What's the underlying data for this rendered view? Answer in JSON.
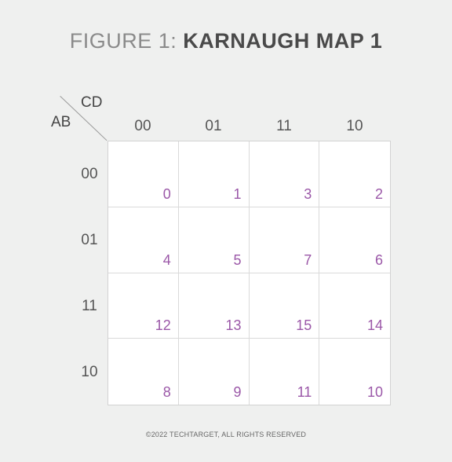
{
  "title": {
    "prefix": "FIGURE 1:",
    "name": "KARNAUGH MAP 1"
  },
  "axes": {
    "column_variables": "CD",
    "row_variables": "AB"
  },
  "column_headers": [
    "00",
    "01",
    "11",
    "10"
  ],
  "row_headers": [
    "00",
    "01",
    "11",
    "10"
  ],
  "cells": [
    [
      "0",
      "1",
      "3",
      "2"
    ],
    [
      "4",
      "5",
      "7",
      "6"
    ],
    [
      "12",
      "13",
      "15",
      "14"
    ],
    [
      "8",
      "9",
      "11",
      "10"
    ]
  ],
  "footer": "©2022 TECHTARGET, ALL RIGHTS RESERVED",
  "colors": {
    "cell_number": "#9b58a8",
    "background": "#eff0ef"
  }
}
